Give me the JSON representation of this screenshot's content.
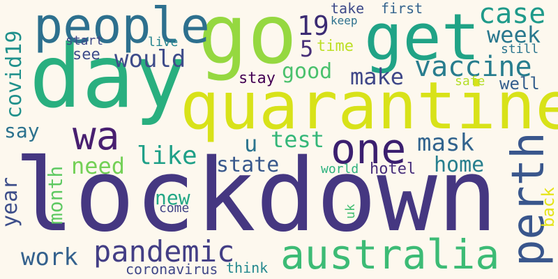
{
  "words": {
    "lockdown": {
      "text": "lockdown",
      "color": "#453781"
    },
    "quarantine": {
      "text": "quarantine",
      "color": "#d8e219"
    },
    "day": {
      "text": "day",
      "color": "#29af7f"
    },
    "go": {
      "text": "go",
      "color": "#95d840"
    },
    "get": {
      "text": "get",
      "color": "#20a386"
    },
    "people": {
      "text": "people",
      "color": "#2d708e"
    },
    "wa": {
      "text": "wa",
      "color": "#481f70"
    },
    "one": {
      "text": "one",
      "color": "#3b1f6f"
    },
    "perth": {
      "text": "perth",
      "color": "#39568c"
    },
    "australia": {
      "text": "australia",
      "color": "#3cbb75"
    },
    "pandemic": {
      "text": "pandemic",
      "color": "#433e85"
    },
    "vaccine": {
      "text": "vaccine",
      "color": "#287d8e"
    },
    "case": {
      "text": "case",
      "color": "#1f9a8a"
    },
    "week": {
      "text": "week",
      "color": "#2a788e"
    },
    "19": {
      "text": "19",
      "color": "#3b2b73"
    },
    "5": {
      "text": "5",
      "color": "#482f78"
    },
    "would": {
      "text": "would",
      "color": "#3e4c8a"
    },
    "good": {
      "text": "good",
      "color": "#4ac16d"
    },
    "make": {
      "text": "make",
      "color": "#3f4788"
    },
    "covid19": {
      "text": "covid19",
      "color": "#21918c"
    },
    "say": {
      "text": "say",
      "color": "#2c728e"
    },
    "like": {
      "text": "like",
      "color": "#1fa088"
    },
    "need": {
      "text": "need",
      "color": "#73d056"
    },
    "u": {
      "text": "u",
      "color": "#2b748e"
    },
    "test": {
      "text": "test",
      "color": "#35b779"
    },
    "mask": {
      "text": "mask",
      "color": "#32648e"
    },
    "home": {
      "text": "home",
      "color": "#277f8e"
    },
    "state": {
      "text": "state",
      "color": "#38588c"
    },
    "month": {
      "text": "month",
      "color": "#5ec962"
    },
    "year": {
      "text": "year",
      "color": "#3d4e8a"
    },
    "new": {
      "text": "new",
      "color": "#22a785"
    },
    "come": {
      "text": "come",
      "color": "#414487"
    },
    "work": {
      "text": "work",
      "color": "#34618d"
    },
    "time": {
      "text": "time",
      "color": "#bddf26"
    },
    "take": {
      "text": "take",
      "color": "#3e4a89"
    },
    "first": {
      "text": "first",
      "color": "#33638d"
    },
    "keep": {
      "text": "keep",
      "color": "#2d718e"
    },
    "start": {
      "text": "start",
      "color": "#3e4989"
    },
    "live": {
      "text": "live",
      "color": "#25838e"
    },
    "see": {
      "text": "see",
      "color": "#3e4c8a"
    },
    "stay": {
      "text": "stay",
      "color": "#440154"
    },
    "safe": {
      "text": "safe",
      "color": "#b5de2b"
    },
    "well": {
      "text": "well",
      "color": "#355f8d"
    },
    "still": {
      "text": "still",
      "color": "#2b758e"
    },
    "world": {
      "text": "world",
      "color": "#2db27d"
    },
    "hotel": {
      "text": "hotel",
      "color": "#472d7b"
    },
    "back": {
      "text": "back",
      "color": "#e5e419"
    },
    "uk": {
      "text": "uk",
      "color": "#42be71"
    },
    "coronavirus": {
      "text": "coronavirus",
      "color": "#3f4788"
    },
    "think": {
      "text": "think",
      "color": "#23888e"
    }
  }
}
